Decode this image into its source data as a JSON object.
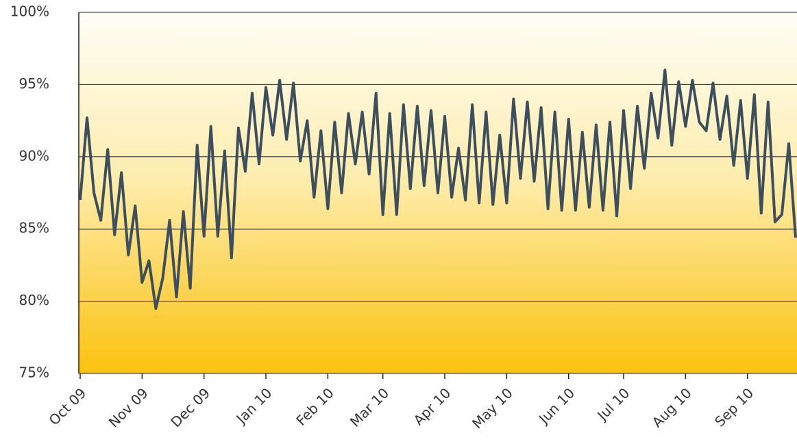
{
  "chart_data": {
    "type": "line",
    "categories": [
      "Oct 09",
      null,
      null,
      null,
      null,
      null,
      null,
      null,
      null,
      "Nov 09",
      null,
      null,
      null,
      null,
      null,
      null,
      null,
      null,
      "Dec 09",
      null,
      null,
      null,
      null,
      null,
      null,
      null,
      null,
      "Jan 10",
      null,
      null,
      null,
      null,
      null,
      null,
      null,
      null,
      "Feb 10",
      null,
      null,
      null,
      null,
      null,
      null,
      null,
      "Mar 10",
      null,
      null,
      null,
      null,
      null,
      null,
      null,
      null,
      "Apr 10",
      null,
      null,
      null,
      null,
      null,
      null,
      null,
      null,
      "May 10",
      null,
      null,
      null,
      null,
      null,
      null,
      null,
      null,
      "Jun 10",
      null,
      null,
      null,
      null,
      null,
      null,
      null,
      "Jul 10",
      null,
      null,
      null,
      null,
      null,
      null,
      null,
      null,
      "Aug 10",
      null,
      null,
      null,
      null,
      null,
      null,
      null,
      null,
      "Sep 10",
      null,
      null,
      null,
      null,
      null,
      null,
      null
    ],
    "values": [
      87,
      92.7,
      87.5,
      85.6,
      90.5,
      84.6,
      88.9,
      83.2,
      86.6,
      81.3,
      82.8,
      79.5,
      81.6,
      85.6,
      80.3,
      86.2,
      80.9,
      90.8,
      84.5,
      92.1,
      84.5,
      90.4,
      83,
      92,
      89,
      94.4,
      89.5,
      94.8,
      91.5,
      95.3,
      91.2,
      95.1,
      89.7,
      92.5,
      87.2,
      91.8,
      86.4,
      92.4,
      87.5,
      93,
      89.5,
      93.1,
      88.8,
      94.4,
      86,
      93,
      86,
      93.6,
      87.8,
      93.5,
      88,
      93.2,
      87.5,
      92.8,
      87.2,
      90.6,
      87,
      93.6,
      86.8,
      93.1,
      86.7,
      91.5,
      86.8,
      94,
      88.5,
      93.8,
      88.3,
      93.4,
      86.4,
      93.1,
      86.3,
      92.6,
      86.3,
      91.7,
      86.5,
      92.2,
      86.3,
      92.4,
      85.9,
      93.2,
      87.8,
      93.5,
      89.2,
      94.4,
      91.3,
      96,
      90.8,
      95.2,
      92.1,
      95.3,
      92.4,
      91.8,
      95.1,
      91.2,
      94.2,
      89.4,
      93.9,
      88.5,
      94.3,
      86.1,
      93.8,
      85.5,
      86,
      90.9,
      84.4
    ],
    "color": "#3d4f5c",
    "ylim": [
      75,
      100
    ],
    "yticks": [
      {
        "value": 75,
        "label": "75%"
      },
      {
        "value": 80,
        "label": "80%"
      },
      {
        "value": 85,
        "label": "85%"
      },
      {
        "value": 90,
        "label": "90%"
      },
      {
        "value": 95,
        "label": "95%"
      },
      {
        "value": 100,
        "label": "100%"
      }
    ],
    "grid": true
  }
}
